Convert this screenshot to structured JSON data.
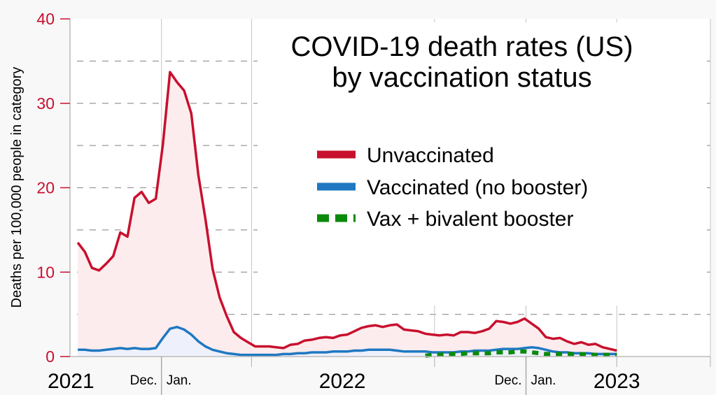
{
  "chart_data": {
    "type": "line",
    "title": "COVID-19 death rates (US)",
    "subtitle": "by vaccination status",
    "ylabel": "Deaths per 100,000 people in category",
    "xlabel": "",
    "ylim": [
      0,
      40
    ],
    "yticks": [
      0,
      10,
      20,
      30,
      40
    ],
    "grid": true,
    "legend_position": "center-right",
    "x_unit": "week index (weekly data)",
    "xlim": [
      -1.1,
      89.2
    ],
    "x_tick_labels": [
      {
        "label": "2021",
        "week": -1.1,
        "size": "large"
      },
      {
        "label": "Dec.",
        "week": 11.8,
        "size": "small",
        "side": "left"
      },
      {
        "label": "Jan.",
        "week": 11.8,
        "size": "small",
        "side": "right"
      },
      {
        "label": "2022",
        "week": 37.3,
        "size": "large"
      },
      {
        "label": "Dec.",
        "week": 63.2,
        "size": "small",
        "side": "left"
      },
      {
        "label": "Jan.",
        "week": 63.2,
        "size": "small",
        "side": "right"
      },
      {
        "label": "2023",
        "week": 76,
        "size": "large"
      }
    ],
    "vertical_gridlines": [
      11.8,
      24.5,
      50.3,
      63.2,
      76,
      89.2
    ],
    "series": [
      {
        "name": "Unvaccinated",
        "color": "#c8102e",
        "fill": "#fdeced",
        "style": "solid",
        "start": 0,
        "values": [
          13.5,
          12.4,
          10.5,
          10.2,
          11.0,
          11.9,
          14.7,
          14.2,
          18.8,
          19.5,
          18.2,
          18.7,
          25.1,
          33.7,
          32.5,
          31.5,
          28.8,
          21.5,
          16.3,
          10.4,
          7.0,
          4.8,
          2.9,
          2.2,
          1.7,
          1.2,
          1.2,
          1.2,
          1.1,
          1.0,
          1.4,
          1.5,
          1.9,
          2.0,
          2.2,
          2.3,
          2.2,
          2.5,
          2.6,
          3.0,
          3.4,
          3.6,
          3.7,
          3.5,
          3.7,
          3.8,
          3.2,
          3.1,
          3.0,
          2.7,
          2.6,
          2.5,
          2.6,
          2.5,
          2.9,
          2.9,
          2.8,
          3.0,
          3.3,
          4.2,
          4.1,
          3.9,
          4.1,
          4.5,
          3.9,
          3.3,
          2.3,
          2.1,
          2.2,
          1.8,
          1.5,
          1.7,
          1.4,
          1.5,
          1.1,
          0.9,
          0.7
        ]
      },
      {
        "name": "Vaccinated (no booster)",
        "color": "#1f78c1",
        "fill": "#eef0fb",
        "style": "solid",
        "start": 0,
        "values": [
          0.8,
          0.8,
          0.7,
          0.7,
          0.8,
          0.9,
          1.0,
          0.9,
          1.0,
          0.9,
          0.9,
          1.0,
          2.2,
          3.3,
          3.5,
          3.2,
          2.6,
          1.8,
          1.2,
          0.8,
          0.6,
          0.4,
          0.3,
          0.2,
          0.2,
          0.2,
          0.2,
          0.2,
          0.2,
          0.3,
          0.3,
          0.4,
          0.4,
          0.5,
          0.5,
          0.5,
          0.6,
          0.6,
          0.6,
          0.7,
          0.7,
          0.8,
          0.8,
          0.8,
          0.8,
          0.7,
          0.6,
          0.6,
          0.6,
          0.6,
          0.5,
          0.5,
          0.5,
          0.5,
          0.6,
          0.6,
          0.7,
          0.7,
          0.7,
          0.8,
          0.9,
          0.9,
          0.9,
          1.0,
          1.1,
          1.0,
          0.8,
          0.6,
          0.5,
          0.5,
          0.4,
          0.4,
          0.4,
          0.3,
          0.3,
          0.3,
          0.3
        ]
      },
      {
        "name": "Vax + bivalent booster",
        "color": "#0a8a0a",
        "style": "dashed",
        "start": 49,
        "values": [
          0.1,
          0.2,
          0.2,
          0.3,
          0.3,
          0.3,
          0.4,
          0.4,
          0.4,
          0.4,
          0.5,
          0.5,
          0.5,
          0.6,
          0.6,
          0.5,
          0.4,
          0.3,
          0.3,
          0.3,
          0.3,
          0.3,
          0.3,
          0.2,
          0.2,
          0.2,
          0.2,
          0.2
        ]
      }
    ]
  }
}
